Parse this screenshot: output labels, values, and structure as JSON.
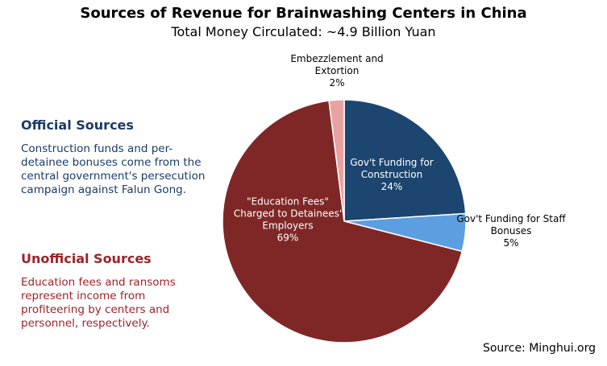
{
  "chart_data": {
    "type": "pie",
    "title": "Sources of Revenue for Brainwashing Centers in China",
    "subtitle": "Total Money Circulated: ~4.9 Billion Yuan",
    "slices": [
      {
        "label_lines": [
          "Gov't Funding for",
          "Construction",
          "24%"
        ],
        "value": 24,
        "color": "#1c4570",
        "label_color": "#ffffff"
      },
      {
        "label_lines": [
          "Gov't Funding for Staff",
          "Bonuses",
          "5%"
        ],
        "value": 5,
        "color": "#5c9fe0",
        "label_color": "#000000"
      },
      {
        "label_lines": [
          "\"Education Fees\"",
          "Charged to Detainees'",
          "Employers",
          "69%"
        ],
        "value": 69,
        "color": "#7f2727",
        "label_color": "#ffffff"
      },
      {
        "label_lines": [
          "Embezzlement and",
          "Extortion",
          "2%"
        ],
        "value": 2,
        "color": "#e8a2a2",
        "label_color": "#000000"
      }
    ],
    "start_angle_deg": 0,
    "direction": "clockwise"
  },
  "sidebar": {
    "official_heading": "Official Sources",
    "official_text": "Construction funds and per-detainee bonuses come from the central government's persecution campaign against Falun Gong.",
    "unofficial_heading": "Unofficial Sources",
    "unofficial_text": "Education fees and ransoms represent income from profiteering by centers and personnel, respectively."
  },
  "source": "Source: Minghui.org"
}
